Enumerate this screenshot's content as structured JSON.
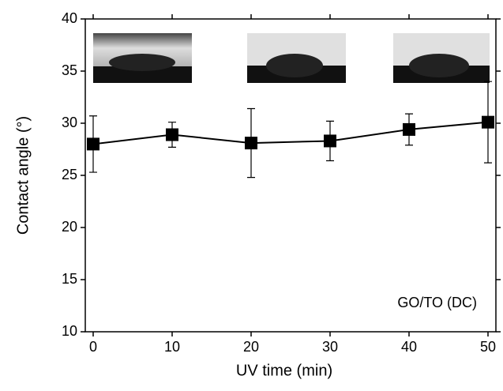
{
  "chart_data": {
    "type": "line",
    "x": [
      0,
      10,
      20,
      30,
      40,
      50
    ],
    "series": [
      {
        "color": "#000000",
        "values": [
          28.0,
          28.9,
          28.1,
          28.3,
          29.4,
          30.1
        ],
        "errors": [
          2.7,
          1.2,
          3.3,
          1.9,
          1.5,
          3.9
        ]
      }
    ],
    "xlim": [
      -1,
      51
    ],
    "xticks": [
      0,
      10,
      20,
      30,
      40,
      50
    ],
    "ylim": [
      10,
      40
    ],
    "yticks": [
      10,
      15,
      20,
      25,
      30,
      35,
      40
    ],
    "xlabel": "UV time (min)",
    "ylabel": "Contact angle (°)",
    "annotation": "GO/TO (DC)"
  }
}
